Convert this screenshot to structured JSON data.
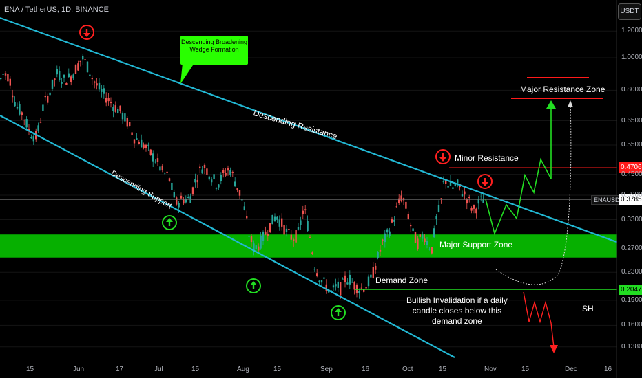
{
  "header": {
    "title": "ENA / TetherUS, 1D, BINANCE",
    "currency_button": "USDT"
  },
  "colors": {
    "support_zone": "#06b000",
    "trendline": "#22b8d4",
    "up_candle": "#26a69a",
    "down_candle": "#ef5350",
    "resistance_line": "#ff1a1a",
    "projection": "#22dd22",
    "invalidation_line": "#22dd22"
  },
  "annotations": {
    "callout": "Descending Broadening\nWedge Formation",
    "descending_resistance": "Descending Resistance",
    "descending_support": "Descending Support",
    "minor_resistance": "Minor Resistance",
    "major_resistance_zone": "Major Resistance Zone",
    "major_support_zone": "Major Support Zone",
    "demand_zone": "Demand Zone",
    "invalidation": "Bullish Invalidation if a daily\ncandle closes below this\ndemand zone",
    "sh": "SH"
  },
  "price_tags": {
    "minor_resistance": "0.4706",
    "symbol": "ENAUSDT",
    "current": "0.3785",
    "invalidation": "0.2047"
  },
  "chart_data": {
    "type": "candlestick",
    "title": "ENA / TetherUS, 1D, BINANCE",
    "y_scale": "log",
    "ylim": [
      0.125,
      1.3
    ],
    "y_ticks": [
      "1.2000",
      "1.0000",
      "0.8000",
      "0.6500",
      "0.5500",
      "0.4500",
      "0.3900",
      "0.3300",
      "0.2700",
      "0.2300",
      "0.1900",
      "0.1600",
      "0.1380"
    ],
    "x_ticks": [
      "15",
      "Jun",
      "17",
      "Jul",
      "15",
      "Aug",
      "15",
      "Sep",
      "16",
      "Oct",
      "15",
      "Nov",
      "15",
      "Dec",
      "16"
    ],
    "levels": {
      "minor_resistance": 0.4706,
      "current": 0.3785,
      "invalidation": 0.2047,
      "support_zone": [
        0.2545,
        0.298
      ]
    },
    "close_path": [
      [
        -4,
        0.83
      ],
      [
        4,
        0.9
      ],
      [
        12,
        0.88
      ],
      [
        22,
        0.72
      ],
      [
        32,
        0.68
      ],
      [
        42,
        0.6
      ],
      [
        52,
        0.58
      ],
      [
        62,
        0.72
      ],
      [
        72,
        0.8
      ],
      [
        82,
        0.9
      ],
      [
        92,
        0.86
      ],
      [
        102,
        0.88
      ],
      [
        112,
        0.95
      ],
      [
        118,
        1.0
      ],
      [
        124,
        0.96
      ],
      [
        134,
        0.86
      ],
      [
        144,
        0.8
      ],
      [
        154,
        0.76
      ],
      [
        164,
        0.72
      ],
      [
        174,
        0.69
      ],
      [
        184,
        0.64
      ],
      [
        194,
        0.58
      ],
      [
        204,
        0.56
      ],
      [
        214,
        0.53
      ],
      [
        224,
        0.5
      ],
      [
        234,
        0.46
      ],
      [
        244,
        0.44
      ],
      [
        254,
        0.37
      ],
      [
        264,
        0.38
      ],
      [
        274,
        0.38
      ],
      [
        284,
        0.44
      ],
      [
        294,
        0.48
      ],
      [
        304,
        0.45
      ],
      [
        314,
        0.42
      ],
      [
        324,
        0.45
      ],
      [
        332,
        0.47
      ],
      [
        342,
        0.42
      ],
      [
        352,
        0.37
      ],
      [
        360,
        0.3
      ],
      [
        368,
        0.27
      ],
      [
        376,
        0.28
      ],
      [
        384,
        0.3
      ],
      [
        392,
        0.32
      ],
      [
        400,
        0.34
      ],
      [
        408,
        0.32
      ],
      [
        416,
        0.3
      ],
      [
        424,
        0.29
      ],
      [
        432,
        0.3
      ],
      [
        440,
        0.36
      ],
      [
        448,
        0.3
      ],
      [
        456,
        0.24
      ],
      [
        464,
        0.22
      ],
      [
        472,
        0.21
      ],
      [
        480,
        0.2
      ],
      [
        488,
        0.21
      ],
      [
        494,
        0.205
      ],
      [
        500,
        0.22
      ],
      [
        506,
        0.22
      ],
      [
        514,
        0.21
      ],
      [
        522,
        0.205
      ],
      [
        530,
        0.21
      ],
      [
        538,
        0.22
      ],
      [
        546,
        0.25
      ],
      [
        554,
        0.28
      ],
      [
        562,
        0.3
      ],
      [
        570,
        0.33
      ],
      [
        576,
        0.36
      ],
      [
        582,
        0.39
      ],
      [
        590,
        0.35
      ],
      [
        598,
        0.3
      ],
      [
        606,
        0.28
      ],
      [
        614,
        0.3
      ],
      [
        620,
        0.28
      ],
      [
        626,
        0.27
      ],
      [
        632,
        0.33
      ],
      [
        638,
        0.36
      ],
      [
        644,
        0.44
      ],
      [
        650,
        0.42
      ],
      [
        656,
        0.41
      ],
      [
        662,
        0.42
      ],
      [
        670,
        0.4
      ],
      [
        678,
        0.38
      ],
      [
        686,
        0.35
      ],
      [
        694,
        0.37
      ],
      [
        702,
        0.38
      ]
    ]
  }
}
